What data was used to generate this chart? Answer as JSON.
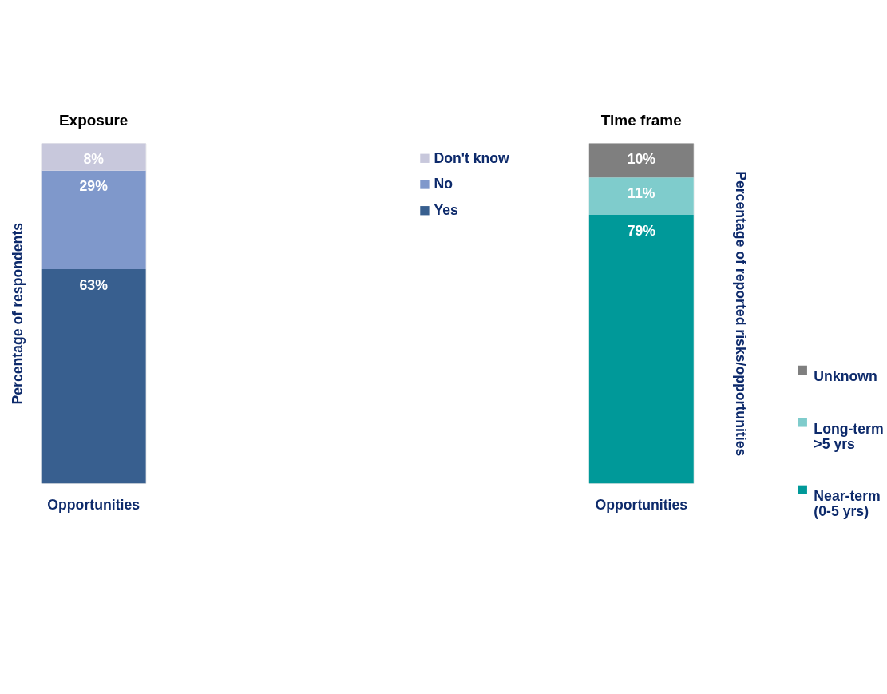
{
  "chart_data": [
    {
      "type": "bar",
      "title": "Exposure",
      "ylabel": "Percentage of respondents",
      "categories": [
        "Opportunities"
      ],
      "stacked": true,
      "ylim": [
        0,
        100
      ],
      "tick_labels": "x",
      "legend": "top right",
      "series": [
        {
          "name": "Yes",
          "color": "#385f8f",
          "values": [
            63
          ],
          "value_labels": [
            "63%"
          ]
        },
        {
          "name": "No",
          "color": "#7f98cb",
          "values": [
            29
          ],
          "value_labels": [
            "29%"
          ]
        },
        {
          "name": "Don't know",
          "color": "#c8c8dc",
          "values": [
            8
          ],
          "value_labels": [
            "8%"
          ]
        }
      ]
    },
    {
      "type": "bar",
      "title": "Time frame",
      "ylabel": "Percentage of reported risks/opportunities",
      "categories": [
        "Opportunities"
      ],
      "stacked": true,
      "ylim": [
        0,
        100
      ],
      "tick_labels": "x",
      "legend": "bottom right",
      "series": [
        {
          "name": "Near-term\n(0-5 yrs)",
          "color": "#009999",
          "values": [
            79
          ],
          "value_labels": [
            "79%"
          ]
        },
        {
          "name": "Long-term\n>5 yrs",
          "color": "#7fcccc",
          "values": [
            11
          ],
          "value_labels": [
            "11%"
          ]
        },
        {
          "name": "Unknown",
          "color": "#7f7f7f",
          "values": [
            10
          ],
          "value_labels": [
            "10%"
          ]
        }
      ]
    }
  ]
}
